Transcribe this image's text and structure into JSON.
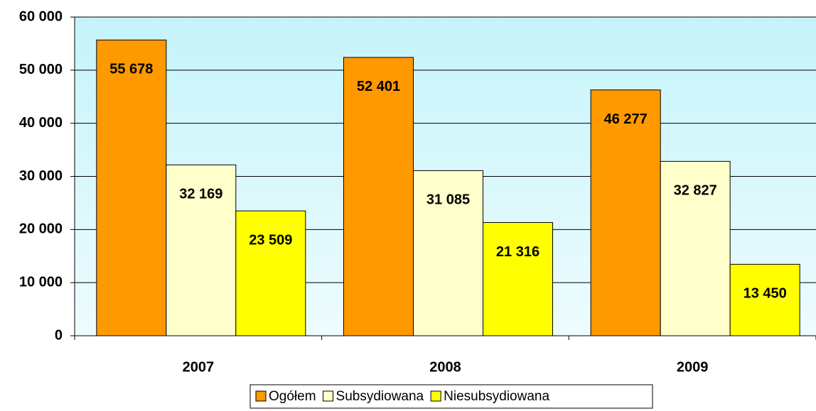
{
  "chart_data": {
    "type": "bar",
    "categories": [
      "2007",
      "2008",
      "2009"
    ],
    "series": [
      {
        "name": "Ogółem",
        "color": "#ff9900",
        "values": [
          55678,
          52401,
          46277
        ],
        "value_labels": [
          "55 678",
          "52 401",
          "46 277"
        ]
      },
      {
        "name": "Subsydiowana",
        "color": "#ffffcc",
        "values": [
          32169,
          31085,
          32827
        ],
        "value_labels": [
          "32 169",
          "31 085",
          "32 827"
        ]
      },
      {
        "name": "Niesubsydiowana",
        "color": "#ffff00",
        "values": [
          23509,
          21316,
          13450
        ],
        "value_labels": [
          "23 509",
          "21 316",
          "13 450"
        ]
      }
    ],
    "ylim": [
      0,
      60000
    ],
    "yticks": [
      0,
      {
        "value": 10000,
        "label": "10 000"
      },
      {
        "value": 20000,
        "label": "20 000"
      },
      {
        "value": 30000,
        "label": "30 000"
      },
      {
        "value": 40000,
        "label": "40 000"
      },
      {
        "value": 50000,
        "label": "50 000"
      },
      {
        "value": 60000,
        "label": "60 000"
      }
    ],
    "grid": true,
    "legend": "bottom"
  }
}
